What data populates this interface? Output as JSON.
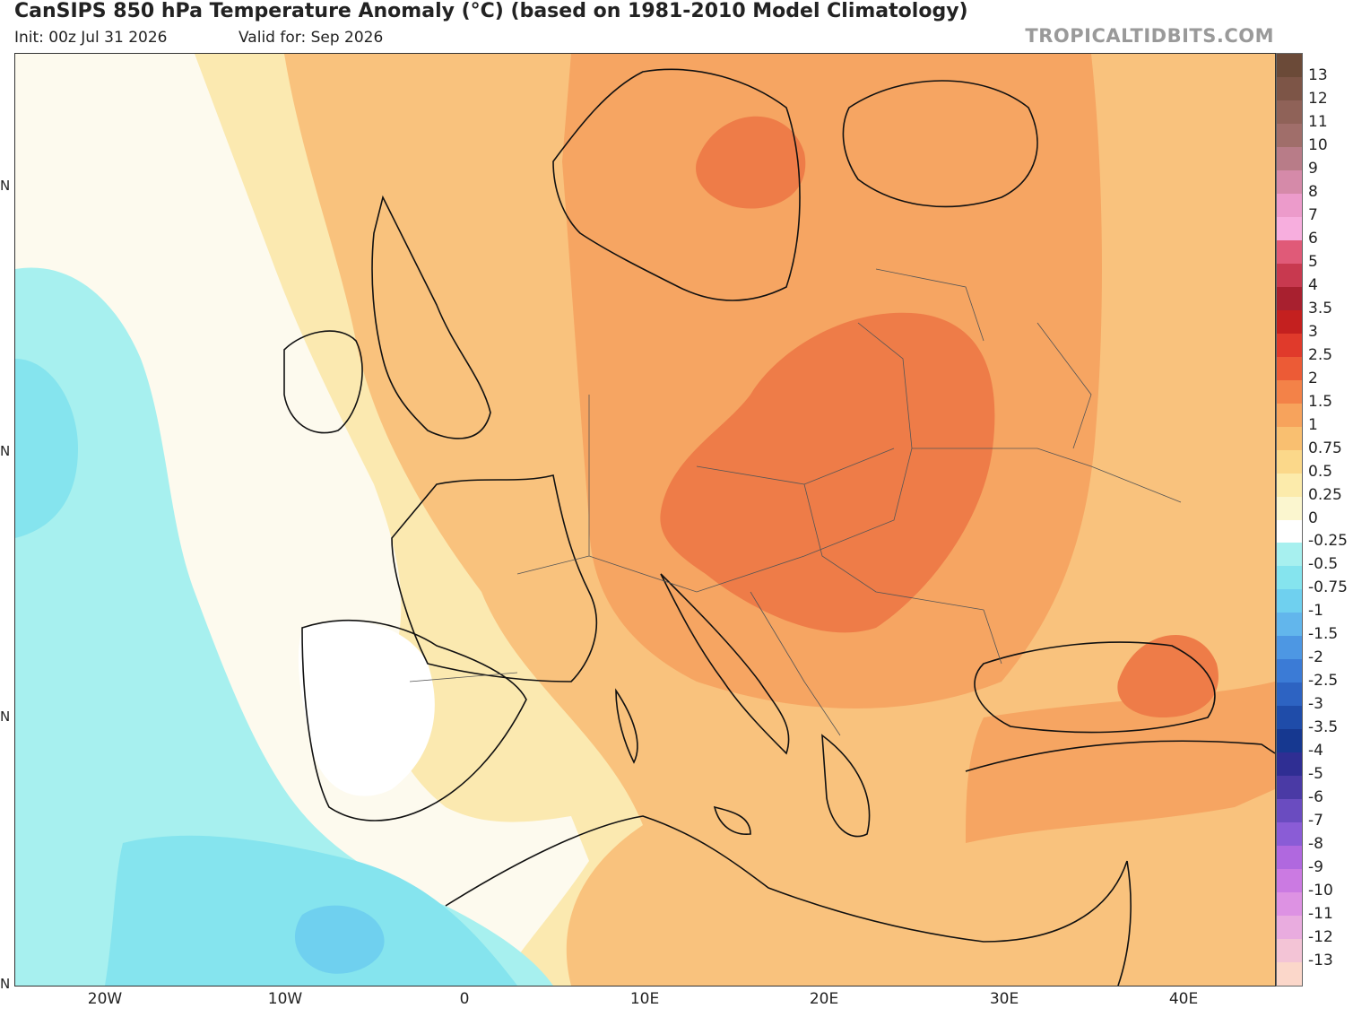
{
  "header": {
    "title": "CanSIPS 850 hPa Temperature Anomaly (°C) (based on 1981-2010 Model Climatology)",
    "init": "Init: 00z Jul 31 2026",
    "valid": "Valid for: Sep 2026",
    "brand": "TROPICALTIDBITS.COM"
  },
  "map": {
    "region": "Europe",
    "x_axis_labels": [
      "20W",
      "10W",
      "0",
      "10E",
      "20E",
      "30E",
      "40E"
    ],
    "y_axis_labels": [
      "N",
      "N",
      "N",
      "N"
    ]
  },
  "colorbar": {
    "labels": [
      "13",
      "12",
      "11",
      "10",
      "9",
      "8",
      "7",
      "6",
      "5",
      "4",
      "3.5",
      "3",
      "2.5",
      "2",
      "1.5",
      "1",
      "0.75",
      "0.5",
      "0.25",
      "0",
      "-0.25",
      "-0.5",
      "-0.75",
      "-1",
      "-1.5",
      "-2",
      "-2.5",
      "-3",
      "-3.5",
      "-4",
      "-5",
      "-6",
      "-7",
      "-8",
      "-9",
      "-10",
      "-11",
      "-12",
      "-13"
    ],
    "colors": [
      "#6b4a38",
      "#7d5547",
      "#8f6258",
      "#a06e6a",
      "#b87c88",
      "#d58aa9",
      "#ec9bcb",
      "#f7aede",
      "#e05a78",
      "#c8394f",
      "#a8202f",
      "#c4201f",
      "#e03a2b",
      "#ec5b36",
      "#f38248",
      "#f7a35c",
      "#f9bf70",
      "#fbd88a",
      "#fcebab",
      "#fbf6cf",
      "#ffffff",
      "#a7f0ef",
      "#85e4ee",
      "#6fd0ef",
      "#62b6ec",
      "#4d97e3",
      "#3b7bd6",
      "#2d63c2",
      "#1f4ca9",
      "#163890",
      "#2f2e93",
      "#4a3aa5",
      "#6a4cc0",
      "#8a5cd6",
      "#b068df",
      "#cb7ae2",
      "#dd92e3",
      "#e9acdf",
      "#f3c4d6",
      "#fbd7ca"
    ]
  }
}
